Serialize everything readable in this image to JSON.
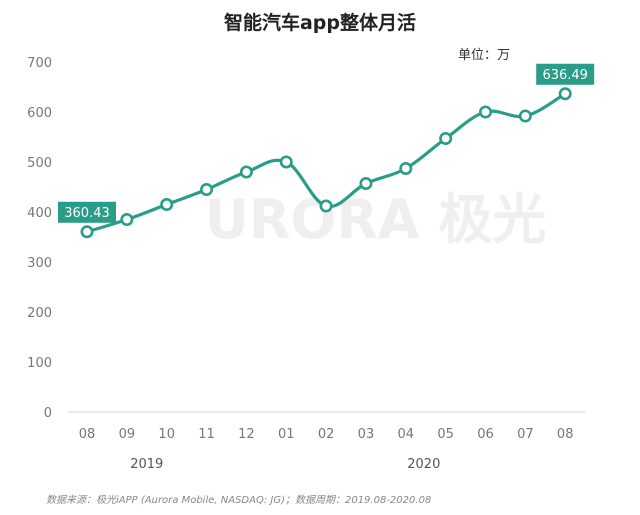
{
  "chart_data": {
    "type": "line",
    "title": "智能汽车app整体月活",
    "unit_label": "单位：万",
    "categories": [
      "08",
      "09",
      "10",
      "11",
      "12",
      "01",
      "02",
      "03",
      "04",
      "05",
      "06",
      "07",
      "08"
    ],
    "year_labels": [
      "2019",
      "2020"
    ],
    "values": [
      360.43,
      385,
      415,
      445,
      480,
      500,
      412,
      457,
      487,
      547,
      600,
      592,
      636.49
    ],
    "labeled_points": [
      {
        "index": 0,
        "label": "360.43"
      },
      {
        "index": 12,
        "label": "636.49"
      }
    ],
    "ylim": [
      0,
      700
    ],
    "yticks": [
      0,
      100,
      200,
      300,
      400,
      500,
      600,
      700
    ],
    "line_color": "#2a9d88",
    "watermark": "URORA 极光",
    "source": "数据来源：极光iAPP (Aurora Mobile, NASDAQ: JG)；数据周期：2019.08-2020.08"
  }
}
